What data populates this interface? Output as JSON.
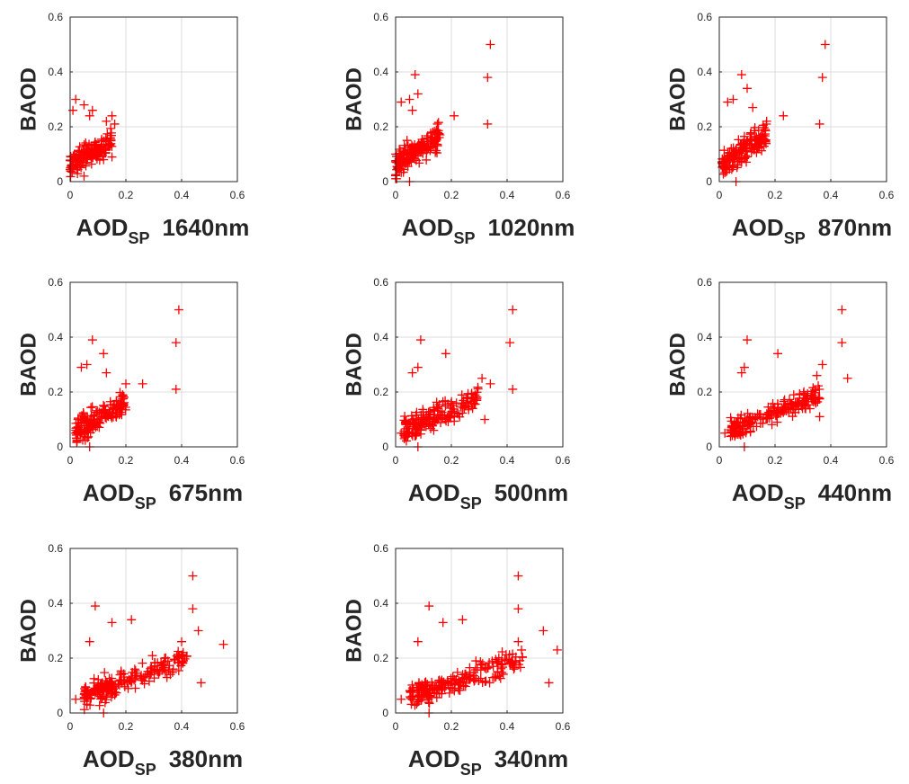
{
  "figure": {
    "marker": "+",
    "marker_color": "#ff0000",
    "grid": true
  },
  "chart_data": [
    {
      "type": "scatter",
      "ylabel": "BAOD",
      "xlabel": "AOD",
      "xlabel_sub": "SP",
      "xlabel_suffix": "1640nm",
      "xlim": [
        0,
        0.6
      ],
      "ylim": [
        0,
        0.6
      ],
      "xticks": [
        "0",
        "0.2",
        "0.4",
        "0.6"
      ],
      "yticks": [
        "0",
        "0.2",
        "0.4",
        "0.6"
      ],
      "outliers": [
        [
          0.02,
          0.3
        ],
        [
          0.05,
          0.28
        ],
        [
          0.01,
          0.26
        ],
        [
          0.08,
          0.26
        ],
        [
          0.07,
          0.24
        ],
        [
          0.15,
          0.24
        ],
        [
          0.16,
          0.21
        ],
        [
          0.13,
          0.22
        ],
        [
          0.01,
          0.05
        ],
        [
          0.12,
          0.08
        ],
        [
          0.15,
          0.09
        ],
        [
          0.05,
          0.02
        ]
      ],
      "cloud": {
        "x_range": [
          0.0,
          0.15
        ],
        "y_base": 0.06,
        "slope": 0.6,
        "y_spread": 0.07,
        "n": 160
      }
    },
    {
      "type": "scatter",
      "ylabel": "BAOD",
      "xlabel": "AOD",
      "xlabel_sub": "SP",
      "xlabel_suffix": "1020nm",
      "xlim": [
        0,
        0.6
      ],
      "ylim": [
        0,
        0.6
      ],
      "xticks": [
        "0",
        "0.2",
        "0.4",
        "0.6"
      ],
      "yticks": [
        "0",
        "0.2",
        "0.4",
        "0.6"
      ],
      "outliers": [
        [
          0.34,
          0.5
        ],
        [
          0.33,
          0.38
        ],
        [
          0.33,
          0.21
        ],
        [
          0.07,
          0.39
        ],
        [
          0.08,
          0.32
        ],
        [
          0.05,
          0.3
        ],
        [
          0.02,
          0.29
        ],
        [
          0.06,
          0.26
        ],
        [
          0.21,
          0.24
        ],
        [
          0.15,
          0.21
        ],
        [
          0.01,
          0.05
        ],
        [
          0.05,
          0.0
        ]
      ],
      "cloud": {
        "x_range": [
          0.0,
          0.16
        ],
        "y_base": 0.06,
        "slope": 0.7,
        "y_spread": 0.08,
        "n": 170
      }
    },
    {
      "type": "scatter",
      "ylabel": "BAOD",
      "xlabel": "AOD",
      "xlabel_sub": "SP",
      "xlabel_suffix": "870nm",
      "xlim": [
        0,
        0.6
      ],
      "ylim": [
        0,
        0.6
      ],
      "xticks": [
        "0",
        "0.2",
        "0.4",
        "0.6"
      ],
      "yticks": [
        "0",
        "0.2",
        "0.4",
        "0.6"
      ],
      "outliers": [
        [
          0.38,
          0.5
        ],
        [
          0.37,
          0.38
        ],
        [
          0.36,
          0.21
        ],
        [
          0.08,
          0.39
        ],
        [
          0.1,
          0.34
        ],
        [
          0.05,
          0.3
        ],
        [
          0.03,
          0.29
        ],
        [
          0.12,
          0.27
        ],
        [
          0.23,
          0.24
        ],
        [
          0.17,
          0.22
        ],
        [
          0.02,
          0.05
        ],
        [
          0.06,
          0.0
        ]
      ],
      "cloud": {
        "x_range": [
          0.01,
          0.17
        ],
        "y_base": 0.06,
        "slope": 0.7,
        "y_spread": 0.08,
        "n": 170
      }
    },
    {
      "type": "scatter",
      "ylabel": "BAOD",
      "xlabel": "AOD",
      "xlabel_sub": "SP",
      "xlabel_suffix": "675nm",
      "xlim": [
        0,
        0.6
      ],
      "ylim": [
        0,
        0.6
      ],
      "xticks": [
        "0",
        "0.2",
        "0.4",
        "0.6"
      ],
      "yticks": [
        "0",
        "0.2",
        "0.4",
        "0.6"
      ],
      "outliers": [
        [
          0.39,
          0.5
        ],
        [
          0.38,
          0.38
        ],
        [
          0.38,
          0.21
        ],
        [
          0.08,
          0.39
        ],
        [
          0.12,
          0.34
        ],
        [
          0.06,
          0.3
        ],
        [
          0.04,
          0.29
        ],
        [
          0.13,
          0.27
        ],
        [
          0.26,
          0.23
        ],
        [
          0.2,
          0.23
        ],
        [
          0.02,
          0.05
        ],
        [
          0.07,
          0.0
        ]
      ],
      "cloud": {
        "x_range": [
          0.02,
          0.2
        ],
        "y_base": 0.05,
        "slope": 0.65,
        "y_spread": 0.08,
        "n": 180
      }
    },
    {
      "type": "scatter",
      "ylabel": "BAOD",
      "xlabel": "AOD",
      "xlabel_sub": "SP",
      "xlabel_suffix": "500nm",
      "xlim": [
        0,
        0.6
      ],
      "ylim": [
        0,
        0.6
      ],
      "xticks": [
        "0",
        "0.2",
        "0.4",
        "0.6"
      ],
      "yticks": [
        "0",
        "0.2",
        "0.4",
        "0.6"
      ],
      "outliers": [
        [
          0.42,
          0.5
        ],
        [
          0.41,
          0.38
        ],
        [
          0.42,
          0.21
        ],
        [
          0.09,
          0.39
        ],
        [
          0.18,
          0.34
        ],
        [
          0.08,
          0.29
        ],
        [
          0.06,
          0.27
        ],
        [
          0.31,
          0.25
        ],
        [
          0.34,
          0.23
        ],
        [
          0.32,
          0.1
        ],
        [
          0.02,
          0.05
        ],
        [
          0.08,
          0.0
        ]
      ],
      "cloud": {
        "x_range": [
          0.03,
          0.3
        ],
        "y_base": 0.06,
        "slope": 0.45,
        "y_spread": 0.07,
        "n": 190
      }
    },
    {
      "type": "scatter",
      "ylabel": "BAOD",
      "xlabel": "AOD",
      "xlabel_sub": "SP",
      "xlabel_suffix": "440nm",
      "xlim": [
        0,
        0.6
      ],
      "ylim": [
        0,
        0.6
      ],
      "xticks": [
        "0",
        "0.2",
        "0.4",
        "0.6"
      ],
      "yticks": [
        "0",
        "0.2",
        "0.4",
        "0.6"
      ],
      "outliers": [
        [
          0.44,
          0.5
        ],
        [
          0.44,
          0.38
        ],
        [
          0.1,
          0.39
        ],
        [
          0.21,
          0.34
        ],
        [
          0.09,
          0.29
        ],
        [
          0.08,
          0.27
        ],
        [
          0.37,
          0.3
        ],
        [
          0.35,
          0.26
        ],
        [
          0.46,
          0.25
        ],
        [
          0.36,
          0.11
        ],
        [
          0.02,
          0.05
        ],
        [
          0.09,
          0.0
        ]
      ],
      "cloud": {
        "x_range": [
          0.04,
          0.36
        ],
        "y_base": 0.06,
        "slope": 0.42,
        "y_spread": 0.07,
        "n": 200
      }
    },
    {
      "type": "scatter",
      "ylabel": "BAOD",
      "xlabel": "AOD",
      "xlabel_sub": "SP",
      "xlabel_suffix": "380nm",
      "xlim": [
        0,
        0.6
      ],
      "ylim": [
        0,
        0.6
      ],
      "xticks": [
        "0",
        "0.2",
        "0.4",
        "0.6"
      ],
      "yticks": [
        "0",
        "0.2",
        "0.4",
        "0.6"
      ],
      "outliers": [
        [
          0.44,
          0.5
        ],
        [
          0.44,
          0.38
        ],
        [
          0.09,
          0.39
        ],
        [
          0.22,
          0.34
        ],
        [
          0.15,
          0.33
        ],
        [
          0.07,
          0.26
        ],
        [
          0.46,
          0.3
        ],
        [
          0.4,
          0.26
        ],
        [
          0.55,
          0.25
        ],
        [
          0.47,
          0.11
        ],
        [
          0.02,
          0.05
        ],
        [
          0.12,
          0.0
        ]
      ],
      "cloud": {
        "x_range": [
          0.05,
          0.42
        ],
        "y_base": 0.06,
        "slope": 0.38,
        "y_spread": 0.07,
        "n": 220
      }
    },
    {
      "type": "scatter",
      "ylabel": "BAOD",
      "xlabel": "AOD",
      "xlabel_sub": "SP",
      "xlabel_suffix": "340nm",
      "xlim": [
        0,
        0.6
      ],
      "ylim": [
        0,
        0.6
      ],
      "xticks": [
        "0",
        "0.2",
        "0.4",
        "0.6"
      ],
      "yticks": [
        "0",
        "0.2",
        "0.4",
        "0.6"
      ],
      "outliers": [
        [
          0.44,
          0.5
        ],
        [
          0.44,
          0.38
        ],
        [
          0.12,
          0.39
        ],
        [
          0.24,
          0.34
        ],
        [
          0.17,
          0.33
        ],
        [
          0.08,
          0.26
        ],
        [
          0.53,
          0.3
        ],
        [
          0.44,
          0.26
        ],
        [
          0.58,
          0.23
        ],
        [
          0.55,
          0.11
        ],
        [
          0.02,
          0.05
        ],
        [
          0.12,
          0.0
        ]
      ],
      "cloud": {
        "x_range": [
          0.05,
          0.46
        ],
        "y_base": 0.06,
        "slope": 0.34,
        "y_spread": 0.07,
        "n": 220
      }
    }
  ]
}
